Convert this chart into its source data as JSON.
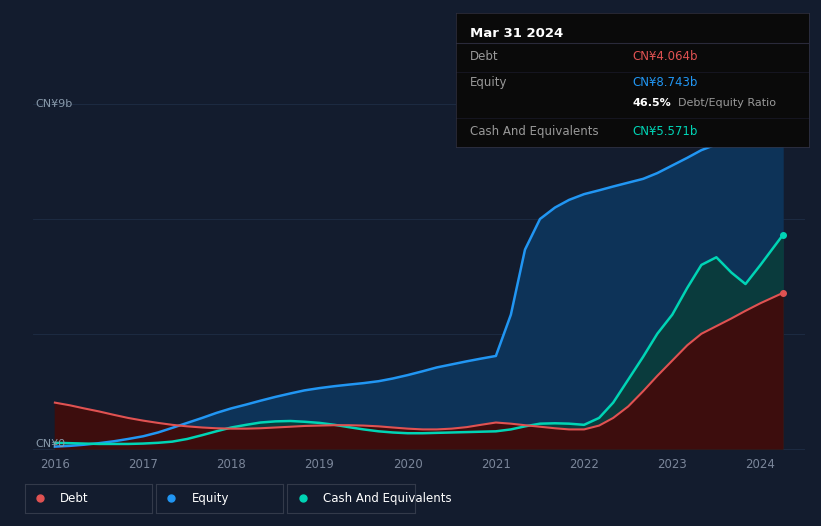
{
  "background_color": "#131c2e",
  "plot_bg_color": "#131c2e",
  "tooltip_bg": "#0a0a0a",
  "title": "Mar 31 2024",
  "tooltip": {
    "debt_label": "Debt",
    "debt_value": "CN¥4.064b",
    "debt_color": "#e05252",
    "equity_label": "Equity",
    "equity_value": "CN¥8.743b",
    "equity_color": "#2196f3",
    "ratio_value": "46.5%",
    "ratio_label": "Debt/Equity Ratio",
    "cash_label": "Cash And Equivalents",
    "cash_value": "CN¥5.571b",
    "cash_color": "#00d4b5"
  },
  "ylabel_top": "CN¥9b",
  "ylabel_bottom": "CN¥0",
  "x_ticks": [
    2016,
    2017,
    2018,
    2019,
    2020,
    2021,
    2022,
    2023,
    2024
  ],
  "x_range": [
    2015.75,
    2024.5
  ],
  "y_range": [
    -0.1,
    9.8
  ],
  "grid_color": "#1e2d45",
  "debt_color": "#e05252",
  "equity_color": "#2196f3",
  "cash_color": "#00d4b5",
  "equity_fill_color": "#0d3358",
  "cash_fill_color": "#0a3d3a",
  "debt_fill_color": "#3d0d0d",
  "years": [
    2016.0,
    2016.17,
    2016.33,
    2016.5,
    2016.67,
    2016.83,
    2017.0,
    2017.17,
    2017.33,
    2017.5,
    2017.67,
    2017.83,
    2018.0,
    2018.17,
    2018.33,
    2018.5,
    2018.67,
    2018.83,
    2019.0,
    2019.17,
    2019.33,
    2019.5,
    2019.67,
    2019.83,
    2020.0,
    2020.17,
    2020.33,
    2020.5,
    2020.67,
    2020.83,
    2021.0,
    2021.17,
    2021.33,
    2021.5,
    2021.67,
    2021.83,
    2022.0,
    2022.17,
    2022.33,
    2022.5,
    2022.67,
    2022.83,
    2023.0,
    2023.17,
    2023.33,
    2023.5,
    2023.67,
    2023.83,
    2024.0,
    2024.25
  ],
  "equity": [
    0.05,
    0.07,
    0.1,
    0.14,
    0.19,
    0.25,
    0.32,
    0.42,
    0.54,
    0.67,
    0.8,
    0.93,
    1.05,
    1.15,
    1.25,
    1.35,
    1.44,
    1.52,
    1.58,
    1.63,
    1.67,
    1.71,
    1.76,
    1.83,
    1.92,
    2.02,
    2.12,
    2.2,
    2.28,
    2.35,
    2.42,
    3.5,
    5.2,
    6.0,
    6.3,
    6.5,
    6.65,
    6.75,
    6.85,
    6.95,
    7.05,
    7.2,
    7.4,
    7.6,
    7.8,
    7.95,
    8.1,
    8.3,
    8.55,
    8.743
  ],
  "debt": [
    1.2,
    1.13,
    1.05,
    0.97,
    0.88,
    0.8,
    0.73,
    0.67,
    0.62,
    0.58,
    0.55,
    0.53,
    0.52,
    0.52,
    0.53,
    0.55,
    0.57,
    0.59,
    0.6,
    0.61,
    0.61,
    0.6,
    0.58,
    0.55,
    0.52,
    0.5,
    0.5,
    0.52,
    0.56,
    0.62,
    0.68,
    0.65,
    0.61,
    0.57,
    0.53,
    0.5,
    0.5,
    0.6,
    0.8,
    1.1,
    1.5,
    1.9,
    2.3,
    2.7,
    3.0,
    3.2,
    3.4,
    3.6,
    3.8,
    4.064
  ],
  "cash": [
    0.15,
    0.14,
    0.13,
    0.12,
    0.12,
    0.12,
    0.13,
    0.15,
    0.18,
    0.25,
    0.35,
    0.45,
    0.55,
    0.62,
    0.68,
    0.71,
    0.72,
    0.7,
    0.67,
    0.62,
    0.56,
    0.5,
    0.45,
    0.42,
    0.4,
    0.4,
    0.41,
    0.42,
    0.43,
    0.44,
    0.45,
    0.5,
    0.58,
    0.65,
    0.66,
    0.65,
    0.62,
    0.8,
    1.2,
    1.8,
    2.4,
    3.0,
    3.5,
    4.2,
    4.8,
    5.0,
    4.6,
    4.3,
    4.8,
    5.571
  ],
  "legend": [
    {
      "label": "Debt",
      "color": "#e05252"
    },
    {
      "label": "Equity",
      "color": "#2196f3"
    },
    {
      "label": "Cash And Equivalents",
      "color": "#00d4b5"
    }
  ]
}
